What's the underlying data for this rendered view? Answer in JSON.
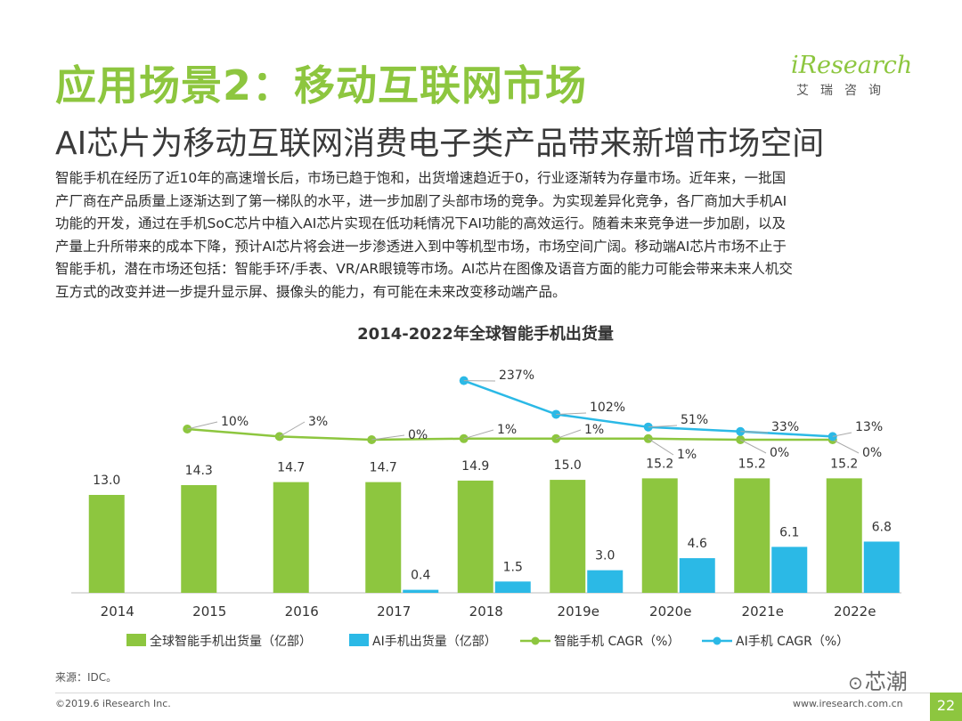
{
  "header": {
    "title": "应用场景2：移动互联网市场",
    "subtitle": "AI芯片为移动互联网消费电子类产品带来新增市场空间",
    "logo_text": "iResearch",
    "logo_sub": "艾瑞咨询"
  },
  "paragraph": [
    "智能手机在经历了近10年的高速增长后，市场已趋于饱和，出货增速趋近于0，行业逐渐转为存量市场。近年来，一批国",
    "产厂商在产品质量上逐渐达到了第一梯队的水平，进一步加剧了头部市场的竞争。为实现差异化竞争，各厂商加大手机AI",
    "功能的开发，通过在手机SoC芯片中植入AI芯片实现在低功耗情况下AI功能的高效运行。随着未来竞争进一步加剧，以及",
    "产量上升所带来的成本下降，预计AI芯片将会进一步渗透进入到中等机型市场，市场空间广阔。移动端AI芯片市场不止于",
    "智能手机，潜在市场还包括：智能手环/手表、VR/AR眼镜等市场。AI芯片在图像及语音方面的能力可能会带来未来人机交",
    "互方式的改变并进一步提升显示屏、摄像头的能力，有可能在未来改变移动端产品。"
  ],
  "chart_data": {
    "type": "bar",
    "title": "2014-2022年全球智能手机出货量",
    "categories": [
      "2014",
      "2015",
      "2016",
      "2017",
      "2018",
      "2019e",
      "2020e",
      "2021e",
      "2022e"
    ],
    "series": [
      {
        "name": "全球智能手机出货量（亿部）",
        "kind": "bar",
        "color": "#8dc63f",
        "values": [
          13.0,
          14.3,
          14.7,
          14.7,
          14.9,
          15.0,
          15.2,
          15.2,
          15.2
        ],
        "labels": [
          "13.0",
          "14.3",
          "14.7",
          "14.7",
          "14.9",
          "15.0",
          "15.2",
          "15.2",
          "15.2"
        ]
      },
      {
        "name": "AI手机出货量（亿部）",
        "kind": "bar",
        "color": "#2bb9e6",
        "values": [
          null,
          null,
          null,
          0.4,
          1.5,
          3.0,
          4.6,
          6.1,
          6.8
        ],
        "labels": [
          null,
          null,
          null,
          "0.4",
          "1.5",
          "3.0",
          "4.6",
          "6.1",
          "6.8"
        ]
      },
      {
        "name": "智能手机 CAGR（%）",
        "kind": "line",
        "color": "#8dc63f",
        "values": [
          null,
          10,
          3,
          0,
          1,
          1,
          1,
          0,
          0
        ],
        "labels": [
          null,
          "10%",
          "3%",
          "0%",
          "1%",
          "1%",
          "1%",
          "0%",
          "0%"
        ]
      },
      {
        "name": "AI手机 CAGR（%）",
        "kind": "line",
        "color": "#2bb9e6",
        "values": [
          null,
          null,
          null,
          null,
          237,
          102,
          51,
          33,
          13
        ],
        "labels": [
          null,
          null,
          null,
          null,
          "237%",
          "102%",
          "51%",
          "33%",
          "13%"
        ]
      }
    ],
    "grid": false,
    "legend": "bottom"
  },
  "source": "来源：IDC。",
  "copyright": "©2019.6 iResearch Inc.",
  "website": "www.iresearch.com.cn",
  "page_number": "22",
  "watermark": "芯潮"
}
